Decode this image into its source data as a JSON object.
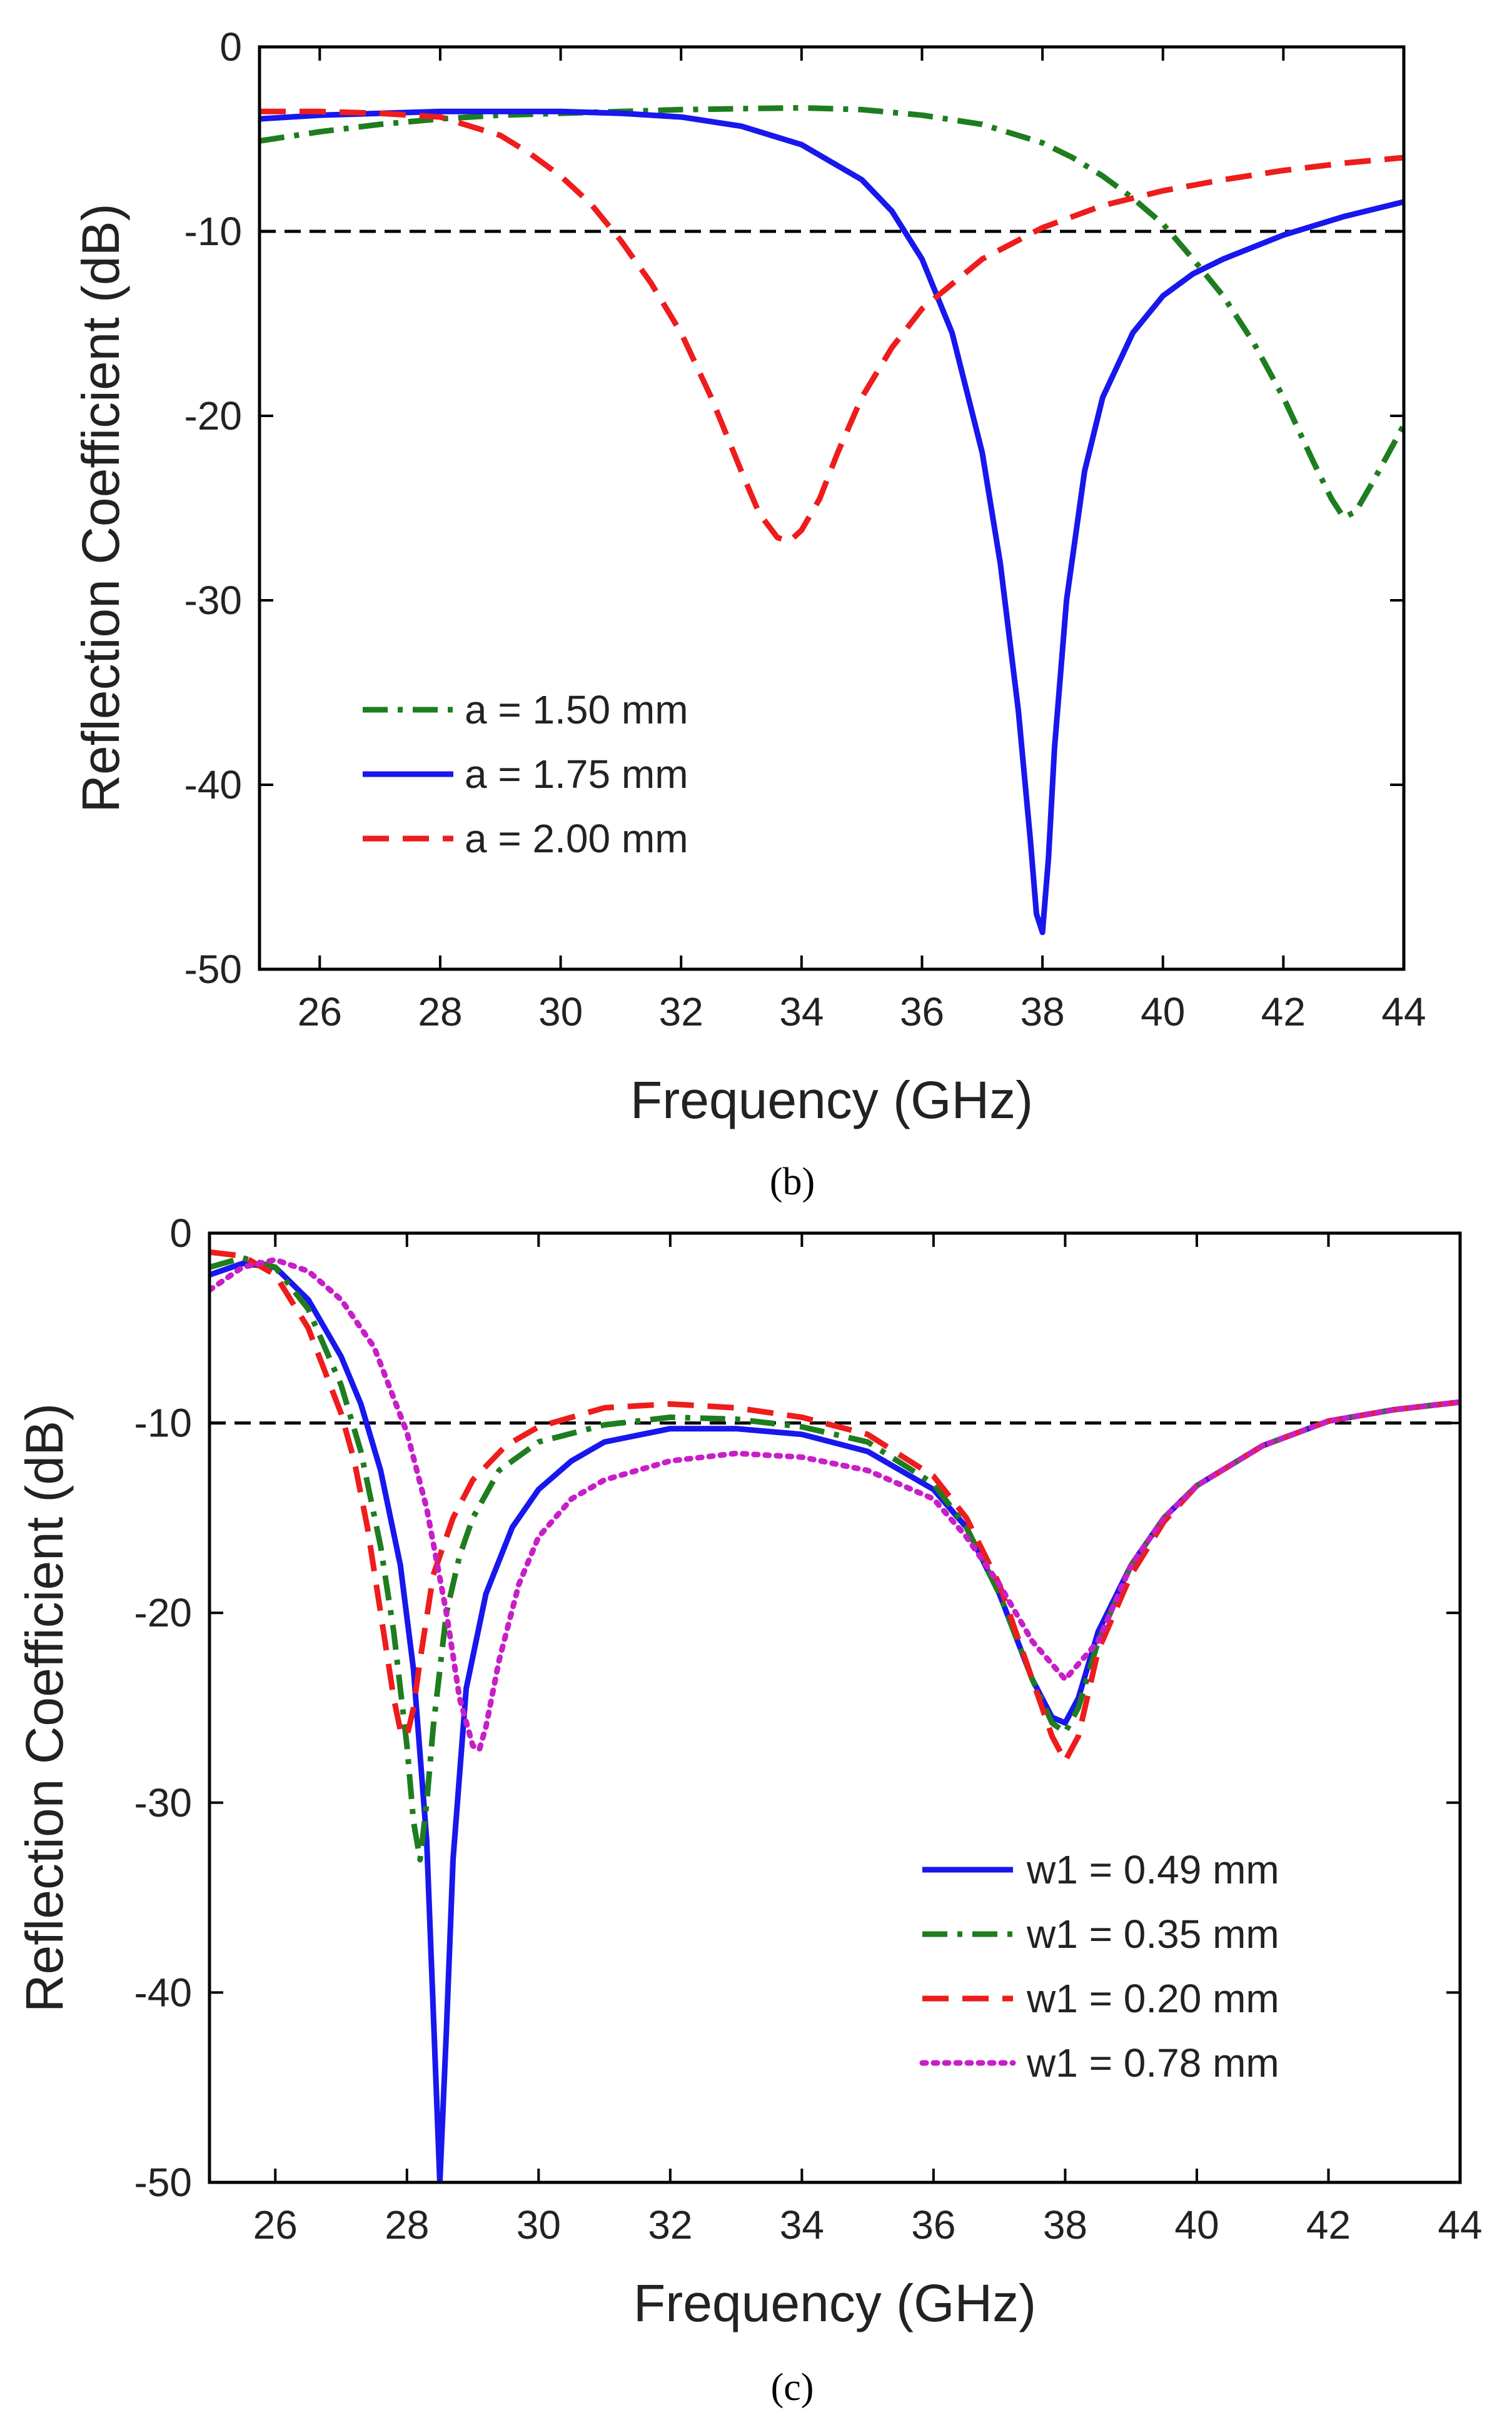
{
  "chart_data": [
    {
      "type": "line",
      "panel_label": "b",
      "title": "",
      "xlabel": "Frequency (GHz)",
      "ylabel": "Reflection Coefficient (dB)",
      "xlim": [
        25,
        44
      ],
      "ylim": [
        -50,
        0
      ],
      "xticks": [
        "26",
        "28",
        "30",
        "32",
        "34",
        "36",
        "38",
        "40",
        "42",
        "44"
      ],
      "yticks": [
        "0",
        "-10",
        "-20",
        "-30",
        "-40",
        "-50"
      ],
      "grid": false,
      "legend_position": "bottom-left",
      "reference_line": {
        "y": -10,
        "style": "dashed",
        "color": "#000000"
      },
      "series": [
        {
          "name": "a = 1.50 mm",
          "color": "#1e7d1e",
          "style": "dashdot",
          "x": [
            25,
            26,
            27,
            28,
            29,
            30,
            31,
            32,
            33,
            34,
            35,
            36,
            37,
            38,
            38.5,
            39,
            39.5,
            40,
            40.5,
            41,
            41.5,
            42,
            42.5,
            42.8,
            43,
            43.2,
            43.5,
            44
          ],
          "y": [
            -5.1,
            -4.6,
            -4.2,
            -3.9,
            -3.7,
            -3.6,
            -3.5,
            -3.4,
            -3.35,
            -3.3,
            -3.4,
            -3.7,
            -4.2,
            -5.2,
            -6,
            -7,
            -8.2,
            -9.6,
            -11.5,
            -13.5,
            -16,
            -19,
            -22.5,
            -24.5,
            -25.5,
            -25.2,
            -23.5,
            -20.5
          ]
        },
        {
          "name": "a = 1.75 mm",
          "color": "#1717ee",
          "style": "solid",
          "x": [
            25,
            26,
            27,
            28,
            29,
            30,
            31,
            32,
            33,
            34,
            35,
            35.5,
            36,
            36.5,
            37,
            37.3,
            37.6,
            37.8,
            37.9,
            38,
            38.1,
            38.2,
            38.4,
            38.7,
            39,
            39.5,
            40,
            40.5,
            41,
            42,
            43,
            44
          ],
          "y": [
            -3.9,
            -3.7,
            -3.6,
            -3.5,
            -3.5,
            -3.5,
            -3.6,
            -3.8,
            -4.3,
            -5.3,
            -7.2,
            -8.9,
            -11.5,
            -15.5,
            -22,
            -28,
            -36,
            -43,
            -47,
            -48,
            -44,
            -38,
            -30,
            -23,
            -19,
            -15.5,
            -13.5,
            -12.3,
            -11.5,
            -10.2,
            -9.2,
            -8.4
          ]
        },
        {
          "name": "a = 2.00 mm",
          "color": "#ee1c1c",
          "style": "dashed",
          "x": [
            25,
            26,
            27,
            28,
            29,
            29.5,
            30,
            30.5,
            31,
            31.5,
            32,
            32.5,
            33,
            33.3,
            33.6,
            33.8,
            34,
            34.3,
            34.6,
            35,
            35.5,
            36,
            37,
            38,
            39,
            40,
            41,
            42,
            43,
            44
          ],
          "y": [
            -3.5,
            -3.5,
            -3.6,
            -3.8,
            -4.8,
            -5.8,
            -7,
            -8.5,
            -10.5,
            -12.8,
            -15.5,
            -19,
            -23,
            -25.3,
            -26.6,
            -26.8,
            -26.2,
            -24.5,
            -22,
            -19,
            -16.3,
            -14.2,
            -11.5,
            -9.8,
            -8.6,
            -7.8,
            -7.2,
            -6.7,
            -6.3,
            -6
          ]
        }
      ]
    },
    {
      "type": "line",
      "panel_label": "c",
      "title": "",
      "xlabel": "Frequency (GHz)",
      "ylabel": "Reflection Coefficient (dB)",
      "xlim": [
        25,
        44
      ],
      "ylim": [
        -50,
        0
      ],
      "xticks": [
        "26",
        "28",
        "30",
        "32",
        "34",
        "36",
        "38",
        "40",
        "42",
        "44"
      ],
      "yticks": [
        "0",
        "-10",
        "-20",
        "-30",
        "-40",
        "-50"
      ],
      "grid": false,
      "legend_position": "bottom-right",
      "reference_line": {
        "y": -10,
        "style": "dashed",
        "color": "#000000"
      },
      "series": [
        {
          "name": "w1 = 0.49 mm",
          "color": "#1717ee",
          "style": "solid",
          "x": [
            25,
            25.5,
            26,
            26.5,
            27,
            27.3,
            27.6,
            27.9,
            28.1,
            28.3,
            28.4,
            28.5,
            28.6,
            28.7,
            28.9,
            29.2,
            29.6,
            30,
            30.5,
            31,
            32,
            33,
            34,
            35,
            36,
            36.5,
            37,
            37.5,
            37.8,
            38,
            38.2,
            38.5,
            39,
            39.5,
            40,
            41,
            42,
            43,
            44
          ],
          "y": [
            -2.2,
            -1.6,
            -1.8,
            -3.5,
            -6.5,
            -9,
            -12.5,
            -17.5,
            -23,
            -32,
            -41,
            -50,
            -42,
            -33,
            -24,
            -19,
            -15.5,
            -13.5,
            -12,
            -11,
            -10.3,
            -10.3,
            -10.6,
            -11.5,
            -13.5,
            -15.5,
            -19,
            -23.5,
            -25.5,
            -25.8,
            -24.5,
            -21,
            -17.5,
            -15,
            -13.3,
            -11.2,
            -9.9,
            -9.3,
            -8.9
          ]
        },
        {
          "name": "w1 = 0.35 mm",
          "color": "#1e7d1e",
          "style": "dashdot",
          "x": [
            25,
            25.5,
            26,
            26.5,
            27,
            27.3,
            27.6,
            27.8,
            28,
            28.1,
            28.2,
            28.3,
            28.4,
            28.6,
            28.8,
            29,
            29.4,
            30,
            31,
            32,
            33,
            34,
            35,
            36,
            36.5,
            37,
            37.5,
            37.8,
            38,
            38.2,
            38.5,
            39,
            39.5,
            40,
            41,
            42,
            43,
            44
          ],
          "y": [
            -1.8,
            -1.3,
            -1.8,
            -4,
            -8,
            -11.5,
            -16.5,
            -21,
            -27,
            -31,
            -33,
            -30,
            -26,
            -20,
            -17,
            -15,
            -12.5,
            -11,
            -10.1,
            -9.7,
            -9.8,
            -10.2,
            -11,
            -13.2,
            -15.5,
            -19,
            -23.5,
            -25.8,
            -26.3,
            -25,
            -21.5,
            -17.5,
            -15,
            -13.3,
            -11.2,
            -9.9,
            -9.3,
            -8.9
          ]
        },
        {
          "name": "w1 = 0.20 mm",
          "color": "#ee1c1c",
          "style": "dashed",
          "x": [
            25,
            25.5,
            26,
            26.5,
            27,
            27.2,
            27.4,
            27.6,
            27.8,
            27.9,
            28,
            28.1,
            28.2,
            28.4,
            28.7,
            29,
            29.5,
            30,
            31,
            32,
            33,
            34,
            35,
            36,
            36.5,
            37,
            37.5,
            37.8,
            38,
            38.2,
            38.5,
            39,
            39.5,
            40,
            41,
            42,
            43,
            44
          ],
          "y": [
            -1,
            -1.2,
            -2.2,
            -5,
            -9.5,
            -12,
            -15.5,
            -20,
            -24.5,
            -26.2,
            -26.5,
            -25,
            -22.5,
            -18,
            -15,
            -13,
            -11.2,
            -10.2,
            -9.2,
            -9,
            -9.2,
            -9.7,
            -10.6,
            -12.8,
            -15,
            -18.5,
            -23.5,
            -26.5,
            -27.8,
            -26.5,
            -22,
            -18,
            -15.2,
            -13.3,
            -11.2,
            -9.9,
            -9.3,
            -8.9
          ]
        },
        {
          "name": "w1 = 0.78 mm",
          "color": "#c81ec8",
          "style": "dotted",
          "x": [
            25,
            25.5,
            26,
            26.5,
            27,
            27.5,
            28,
            28.3,
            28.6,
            28.8,
            29,
            29.1,
            29.2,
            29.4,
            29.7,
            30,
            30.5,
            31,
            32,
            33,
            34,
            35,
            36,
            36.5,
            37,
            37.5,
            38,
            38.5,
            39,
            39.5,
            40,
            41,
            42,
            43,
            44
          ],
          "y": [
            -3,
            -1.8,
            -1.4,
            -2,
            -3.5,
            -6,
            -10.5,
            -14.5,
            -20,
            -24.5,
            -27,
            -27.2,
            -26,
            -22.5,
            -18.5,
            -16,
            -14,
            -13,
            -12,
            -11.6,
            -11.8,
            -12.5,
            -14,
            -16,
            -18.5,
            -21.5,
            -23.5,
            -21.5,
            -17.5,
            -15,
            -13.3,
            -11.2,
            -9.9,
            -9.3,
            -8.9
          ]
        }
      ]
    }
  ],
  "captions": [
    "(b)",
    "(c)"
  ]
}
